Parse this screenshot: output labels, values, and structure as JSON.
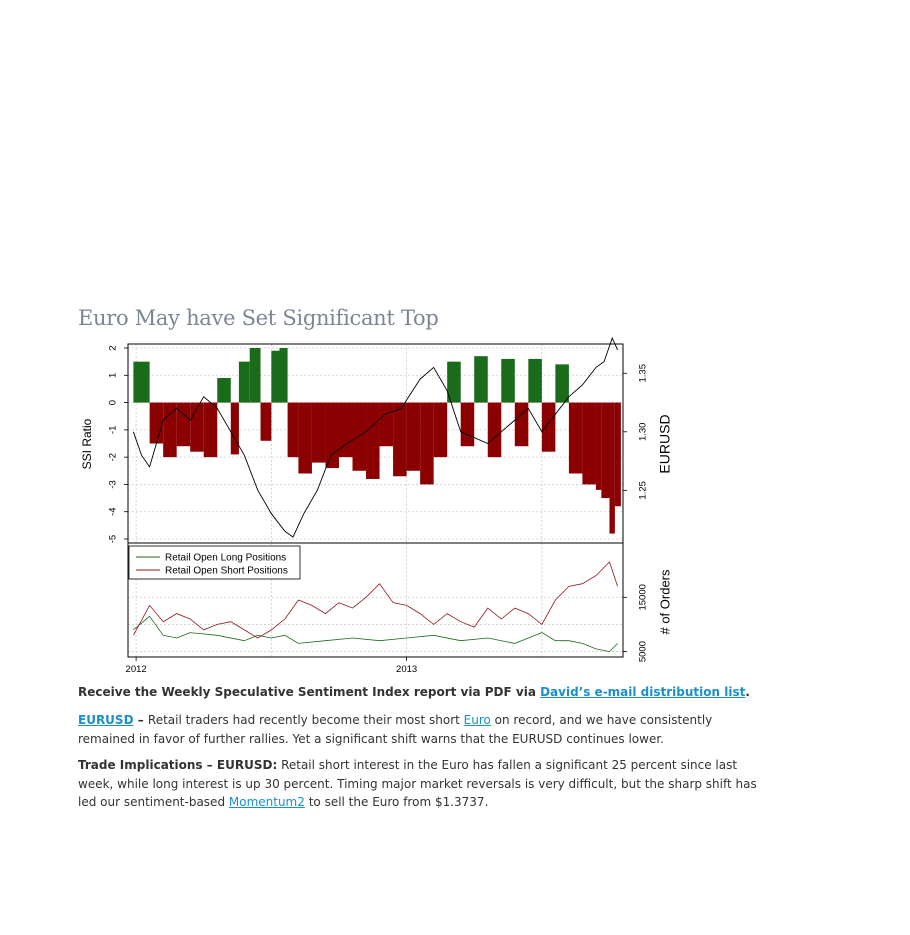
{
  "article": {
    "title": "Euro May have Set Significant Top",
    "receive_prefix": "Receive the Weekly Speculative Sentiment Index report via PDF via ",
    "receive_link": "David’s e-mail distribution list",
    "receive_suffix": ".",
    "p1_link": "EURUSD",
    "p1_dash": " – ",
    "p1_text_a": "Retail traders had recently become their most short ",
    "p1_link2": "Euro",
    "p1_text_b": " on record, and we have consistently remained in favor of further rallies. Yet a significant shift warns that the EURUSD continues lower.",
    "p2_label": "Trade Implications – EURUSD:",
    "p2_text_a": " Retail short interest in the Euro has fallen a significant 25 percent since last week, while long interest is up 30 percent. Timing major market reversals is very difficult, but the sharp shift has led our sentiment-based ",
    "p2_link": "Momentum2",
    "p2_text_b": " to sell the Euro from $1.3737."
  },
  "colors": {
    "long_bar": "#1a6b1a",
    "short_bar": "#8b0000",
    "long_line": "#1a6b1a",
    "short_line": "#8b1a1a",
    "price_line": "#000000",
    "link": "#1a8fcb",
    "title": "#7d8594"
  },
  "chart_data": [
    {
      "type": "bar",
      "panel": "top",
      "ylabel_left": "SSI Ratio",
      "ylabel_right": "EURUSD",
      "yticks_left": [
        2,
        1,
        0,
        -1,
        -2,
        -3,
        -4,
        -5
      ],
      "ylim_left": [
        -5,
        2
      ],
      "yticks_right": [
        1.25,
        1.3,
        1.35
      ],
      "ylim_right": [
        1.205,
        1.375
      ],
      "xlim": [
        2011.97,
        2013.8
      ],
      "grid": true,
      "ssi_ratio": {
        "x": [
          2011.99,
          2012.05,
          2012.1,
          2012.15,
          2012.2,
          2012.25,
          2012.3,
          2012.35,
          2012.38,
          2012.42,
          2012.46,
          2012.5,
          2012.53,
          2012.56,
          2012.6,
          2012.65,
          2012.7,
          2012.75,
          2012.8,
          2012.85,
          2012.9,
          2012.95,
          2013.0,
          2013.05,
          2013.1,
          2013.15,
          2013.2,
          2013.25,
          2013.3,
          2013.35,
          2013.4,
          2013.45,
          2013.5,
          2013.55,
          2013.6,
          2013.65,
          2013.7,
          2013.72,
          2013.75,
          2013.77
        ],
        "values": [
          1.5,
          -1.5,
          -2.0,
          -1.6,
          -1.8,
          -2.0,
          0.9,
          -1.9,
          1.5,
          2.0,
          -1.4,
          1.9,
          2.0,
          -2.0,
          -2.6,
          -2.2,
          -2.4,
          -2.0,
          -2.5,
          -2.8,
          -1.6,
          -2.7,
          -2.5,
          -3.0,
          -2.0,
          1.5,
          -1.6,
          1.7,
          -2.0,
          1.6,
          -1.6,
          1.6,
          -1.8,
          1.4,
          -2.6,
          -3.0,
          -3.2,
          -3.5,
          -4.8,
          -3.8
        ]
      },
      "eurusd": {
        "x": [
          2011.99,
          2012.02,
          2012.05,
          2012.1,
          2012.15,
          2012.2,
          2012.25,
          2012.3,
          2012.35,
          2012.4,
          2012.45,
          2012.5,
          2012.55,
          2012.58,
          2012.62,
          2012.67,
          2012.72,
          2012.78,
          2012.85,
          2012.92,
          2012.98,
          2013.05,
          2013.1,
          2013.15,
          2013.2,
          2013.25,
          2013.3,
          2013.35,
          2013.4,
          2013.45,
          2013.5,
          2013.55,
          2013.6,
          2013.65,
          2013.7,
          2013.73,
          2013.76,
          2013.78
        ],
        "values": [
          1.3,
          1.28,
          1.27,
          1.31,
          1.32,
          1.31,
          1.33,
          1.32,
          1.3,
          1.28,
          1.25,
          1.23,
          1.215,
          1.21,
          1.23,
          1.25,
          1.28,
          1.29,
          1.3,
          1.315,
          1.32,
          1.345,
          1.355,
          1.335,
          1.3,
          1.295,
          1.29,
          1.3,
          1.31,
          1.32,
          1.3,
          1.315,
          1.33,
          1.34,
          1.355,
          1.36,
          1.38,
          1.37
        ]
      }
    },
    {
      "type": "line",
      "panel": "bottom",
      "ylabel_right": "# of Orders",
      "yticks_right": [
        5000,
        15000
      ],
      "ylim": [
        4000,
        25000
      ],
      "xticks": [
        "2012",
        "2013"
      ],
      "xtick_values": [
        2012.0,
        2013.0
      ],
      "grid": true,
      "legend_position": "top-left",
      "series": [
        {
          "name": "Retail Open Long Positions",
          "x": [
            2011.99,
            2012.05,
            2012.1,
            2012.15,
            2012.2,
            2012.3,
            2012.4,
            2012.45,
            2012.5,
            2012.55,
            2012.6,
            2012.7,
            2012.8,
            2012.9,
            2013.0,
            2013.1,
            2013.2,
            2013.3,
            2013.4,
            2013.5,
            2013.55,
            2013.6,
            2013.65,
            2013.7,
            2013.75,
            2013.78
          ],
          "values": [
            9000,
            11500,
            8000,
            7500,
            8500,
            8000,
            7000,
            8000,
            7500,
            8000,
            6500,
            7000,
            7500,
            7000,
            7500,
            8000,
            7000,
            7500,
            6500,
            8500,
            7000,
            7000,
            6500,
            5500,
            5000,
            6500
          ]
        },
        {
          "name": "Retail Open Short Positions",
          "x": [
            2011.99,
            2012.05,
            2012.1,
            2012.15,
            2012.2,
            2012.25,
            2012.3,
            2012.35,
            2012.4,
            2012.45,
            2012.5,
            2012.55,
            2012.6,
            2012.65,
            2012.7,
            2012.75,
            2012.8,
            2012.85,
            2012.9,
            2012.95,
            2013.0,
            2013.05,
            2013.1,
            2013.15,
            2013.2,
            2013.25,
            2013.3,
            2013.35,
            2013.4,
            2013.45,
            2013.5,
            2013.55,
            2013.6,
            2013.65,
            2013.7,
            2013.75,
            2013.78
          ],
          "values": [
            8000,
            13500,
            10500,
            12000,
            11000,
            9000,
            10000,
            10500,
            9000,
            7500,
            9000,
            11000,
            14500,
            13500,
            12000,
            14000,
            13000,
            15000,
            17500,
            14000,
            13500,
            12000,
            10000,
            12000,
            10500,
            9500,
            13000,
            11000,
            13000,
            12000,
            10000,
            14500,
            17000,
            17500,
            19000,
            21500,
            17000
          ]
        }
      ]
    }
  ]
}
